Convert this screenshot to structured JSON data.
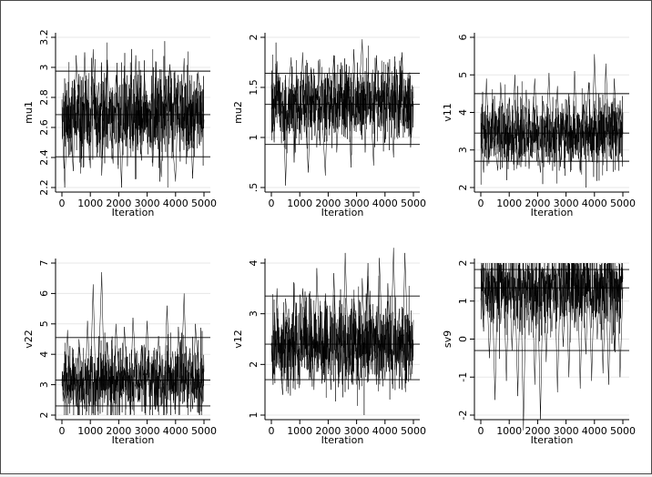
{
  "chart_data": [
    {
      "type": "line",
      "title": "",
      "xlabel": "Iteration",
      "ylabel": "mu1",
      "xlim": [
        0,
        5000
      ],
      "ylim": [
        2.2,
        3.2
      ],
      "x_ticks": [
        0,
        1000,
        2000,
        3000,
        4000,
        5000
      ],
      "y_ticks": [
        2.2,
        2.4,
        2.6,
        2.8,
        3,
        3.2
      ],
      "y_tick_labels": [
        "2.2",
        "2.4",
        "2.6",
        "2.8",
        "3",
        "3.2"
      ],
      "grid": true,
      "series": [
        {
          "x": [
            0,
            100,
            200,
            300,
            400,
            500,
            600,
            700,
            800,
            900,
            1000,
            1100,
            1200,
            1300,
            1400,
            1500,
            1600,
            1700,
            1800,
            1900,
            2000,
            2100,
            2200,
            2300,
            2400,
            2500,
            2600,
            2700,
            2800,
            2900,
            3000,
            3100,
            3200,
            3300,
            3400,
            3500,
            3600,
            3700,
            3800,
            3900,
            4000,
            4100,
            4200,
            4300,
            4400,
            4500,
            4600,
            4700,
            4800,
            4900,
            5000
          ],
          "y": [
            2.68,
            2.2,
            2.75,
            2.58,
            2.31,
            3.08,
            2.71,
            2.5,
            3.1,
            2.62,
            2.33,
            3.12,
            2.55,
            2.9,
            2.28,
            2.74,
            3.05,
            2.61,
            2.36,
            2.95,
            2.7,
            2.2,
            3.01,
            2.58,
            2.85,
            2.44,
            3.08,
            2.69,
            2.38,
            2.96,
            2.63,
            2.78,
            2.34,
            3.04,
            2.55,
            2.27,
            2.88,
            2.71,
            3.02,
            2.47,
            2.24,
            2.92,
            2.6,
            3.06,
            2.4,
            2.83,
            2.26,
            2.75,
            2.97,
            2.52,
            2.69
          ]
        }
      ],
      "reference_lines": [
        2.975,
        2.685,
        2.405
      ]
    },
    {
      "type": "line",
      "title": "",
      "xlabel": "Iteration",
      "ylabel": "mu2",
      "xlim": [
        0,
        5000
      ],
      "ylim": [
        0.5,
        2
      ],
      "x_ticks": [
        0,
        1000,
        2000,
        3000,
        4000,
        5000
      ],
      "y_ticks": [
        0.5,
        1,
        1.5,
        2
      ],
      "y_tick_labels": [
        ".5",
        "1",
        "1.5",
        "2"
      ],
      "grid": true,
      "series": [
        {
          "x": [
            0,
            100,
            200,
            300,
            400,
            500,
            600,
            700,
            800,
            900,
            1000,
            1100,
            1200,
            1300,
            1400,
            1500,
            1600,
            1700,
            1800,
            1900,
            2000,
            2100,
            2200,
            2300,
            2400,
            2500,
            2600,
            2700,
            2800,
            2900,
            3000,
            3100,
            3200,
            3300,
            3400,
            3500,
            3600,
            3700,
            3800,
            3900,
            4000,
            4100,
            4200,
            4300,
            4400,
            4500,
            4600,
            4700,
            4800,
            4900,
            5000
          ],
          "y": [
            1.3,
            0.95,
            1.76,
            1.1,
            1.55,
            0.52,
            1.45,
            1.8,
            0.75,
            1.62,
            1.05,
            1.85,
            1.2,
            0.65,
            1.7,
            1.35,
            0.9,
            1.78,
            1.15,
            0.62,
            1.58,
            1.28,
            1.82,
            0.85,
            1.4,
            1.72,
            1.0,
            1.6,
            0.7,
            1.88,
            1.2,
            1.5,
            1.98,
            0.85,
            1.65,
            1.3,
            0.72,
            1.82,
            1.1,
            1.55,
            0.95,
            1.75,
            1.35,
            0.8,
            1.68,
            1.25,
            1.85,
            1.05,
            1.6,
            0.9,
            1.33
          ]
        }
      ],
      "reference_lines": [
        1.64,
        1.33,
        0.93
      ]
    },
    {
      "type": "line",
      "title": "",
      "xlabel": "Iteration",
      "ylabel": "v11",
      "xlim": [
        0,
        5000
      ],
      "ylim": [
        2,
        6
      ],
      "x_ticks": [
        0,
        1000,
        2000,
        3000,
        4000,
        5000
      ],
      "y_ticks": [
        2,
        3,
        4,
        5,
        6
      ],
      "y_tick_labels": [
        "2",
        "3",
        "4",
        "5",
        "6"
      ],
      "grid": true,
      "series": [
        {
          "x": [
            0,
            100,
            200,
            300,
            400,
            500,
            600,
            700,
            800,
            900,
            1000,
            1100,
            1200,
            1300,
            1400,
            1500,
            1600,
            1700,
            1800,
            1900,
            2000,
            2100,
            2200,
            2300,
            2400,
            2500,
            2600,
            2700,
            2800,
            2900,
            3000,
            3100,
            3200,
            3300,
            3400,
            3500,
            3600,
            3700,
            3800,
            3900,
            4000,
            4100,
            4200,
            4300,
            4400,
            4500,
            4600,
            4700,
            4800,
            4900,
            5000
          ],
          "y": [
            3.4,
            2.4,
            4.9,
            2.8,
            4.2,
            3.1,
            2.45,
            4.8,
            3.5,
            2.7,
            4.4,
            3.0,
            5.0,
            2.6,
            3.9,
            3.3,
            4.6,
            2.5,
            3.7,
            4.9,
            3.2,
            2.4,
            4.3,
            3.6,
            5.05,
            2.8,
            3.4,
            4.7,
            2.55,
            3.9,
            3.1,
            4.5,
            2.7,
            5.1,
            3.3,
            2.4,
            4.2,
            3.6,
            4.8,
            2.9,
            5.55,
            3.2,
            4.4,
            2.6,
            5.3,
            3.5,
            2.75,
            4.9,
            3.1,
            4.2,
            3.45
          ]
        }
      ],
      "reference_lines": [
        4.5,
        3.45,
        2.7
      ]
    },
    {
      "type": "line",
      "title": "",
      "xlabel": "Iteration",
      "ylabel": "v22",
      "xlim": [
        0,
        5000
      ],
      "ylim": [
        2,
        7
      ],
      "x_ticks": [
        0,
        1000,
        2000,
        3000,
        4000,
        5000
      ],
      "y_ticks": [
        2,
        3,
        4,
        5,
        6,
        7
      ],
      "y_tick_labels": [
        "2",
        "3",
        "4",
        "5",
        "6",
        "7"
      ],
      "grid": true,
      "series": [
        {
          "x": [
            0,
            100,
            200,
            300,
            400,
            500,
            600,
            700,
            800,
            900,
            1000,
            1100,
            1200,
            1300,
            1400,
            1500,
            1600,
            1700,
            1800,
            1900,
            2000,
            2100,
            2200,
            2300,
            2400,
            2500,
            2600,
            2700,
            2800,
            2900,
            3000,
            3100,
            3200,
            3300,
            3400,
            3500,
            3600,
            3700,
            3800,
            3900,
            4000,
            4100,
            4200,
            4300,
            4400,
            4500,
            4600,
            4700,
            4800,
            4900,
            5000
          ],
          "y": [
            3.1,
            2.4,
            4.8,
            2.7,
            3.9,
            2.3,
            4.5,
            3.3,
            2.2,
            5.1,
            3.0,
            6.3,
            2.5,
            3.8,
            6.7,
            2.4,
            4.4,
            3.1,
            2.0,
            5.0,
            3.4,
            2.6,
            4.9,
            3.2,
            2.2,
            5.2,
            3.6,
            2.5,
            4.3,
            3.0,
            5.1,
            2.4,
            3.7,
            2.2,
            4.6,
            3.3,
            2.7,
            5.6,
            3.0,
            4.1,
            2.3,
            4.9,
            3.2,
            6.0,
            2.6,
            4.2,
            2.2,
            5.0,
            3.4,
            2.5,
            3.2
          ]
        }
      ],
      "reference_lines": [
        4.55,
        3.15,
        2.3
      ]
    },
    {
      "type": "line",
      "title": "",
      "xlabel": "Iteration",
      "ylabel": "v12",
      "xlim": [
        0,
        5000
      ],
      "ylim": [
        1,
        4
      ],
      "x_ticks": [
        0,
        1000,
        2000,
        3000,
        4000,
        5000
      ],
      "y_ticks": [
        1,
        2,
        3,
        4
      ],
      "y_tick_labels": [
        "1",
        "2",
        "3",
        "4"
      ],
      "grid": true,
      "series": [
        {
          "x": [
            0,
            100,
            200,
            300,
            400,
            500,
            600,
            700,
            800,
            900,
            1000,
            1100,
            1200,
            1300,
            1400,
            1500,
            1600,
            1700,
            1800,
            1900,
            2000,
            2100,
            2200,
            2300,
            2400,
            2500,
            2600,
            2700,
            2800,
            2900,
            3000,
            3100,
            3200,
            3300,
            3400,
            3500,
            3600,
            3700,
            3800,
            3900,
            4000,
            4100,
            4200,
            4300,
            4400,
            4500,
            4600,
            4700,
            4800,
            4900,
            5000
          ],
          "y": [
            2.4,
            1.8,
            3.5,
            2.0,
            1.4,
            3.3,
            2.6,
            1.7,
            3.6,
            2.2,
            1.6,
            3.5,
            2.8,
            1.9,
            3.2,
            1.5,
            3.9,
            2.3,
            1.7,
            3.4,
            2.5,
            1.5,
            3.8,
            2.1,
            3.0,
            1.6,
            4.2,
            2.4,
            1.8,
            3.3,
            2.7,
            1.5,
            3.7,
            2.2,
            4.0,
            1.9,
            2.9,
            1.6,
            4.1,
            2.5,
            1.7,
            3.6,
            2.2,
            4.3,
            1.8,
            3.1,
            1.5,
            4.2,
            2.4,
            1.7,
            2.4
          ]
        }
      ],
      "reference_lines": [
        3.35,
        2.4,
        1.7
      ]
    },
    {
      "type": "line",
      "title": "",
      "xlabel": "Iteration",
      "ylabel": "sv9",
      "xlim": [
        0,
        5000
      ],
      "ylim": [
        -2,
        2
      ],
      "x_ticks": [
        0,
        1000,
        2000,
        3000,
        4000,
        5000
      ],
      "y_ticks": [
        -2,
        -1,
        0,
        1,
        2
      ],
      "y_tick_labels": [
        "-2",
        "-1",
        "0",
        "1",
        "2"
      ],
      "grid": true,
      "series": [
        {
          "x": [
            0,
            100,
            200,
            300,
            400,
            500,
            600,
            700,
            800,
            900,
            1000,
            1100,
            1200,
            1300,
            1400,
            1500,
            1600,
            1700,
            1800,
            1900,
            2000,
            2100,
            2200,
            2300,
            2400,
            2500,
            2600,
            2700,
            2800,
            2900,
            3000,
            3100,
            3200,
            3300,
            3400,
            3500,
            3600,
            3700,
            3800,
            3900,
            4000,
            4100,
            4200,
            4300,
            4400,
            4500,
            4600,
            4700,
            4800,
            4900,
            5000
          ],
          "y": [
            1.85,
            0.2,
            1.8,
            -0.5,
            1.5,
            -1.6,
            1.85,
            0.4,
            1.7,
            -1.1,
            1.85,
            -0.3,
            1.6,
            -1.5,
            1.85,
            -2.4,
            1.7,
            0.1,
            1.85,
            -1.2,
            1.5,
            -2.1,
            1.85,
            -0.6,
            1.7,
            0.2,
            1.85,
            -1.4,
            1.6,
            -0.2,
            1.85,
            -1.0,
            1.75,
            0.3,
            1.85,
            -1.3,
            1.6,
            -0.4,
            1.85,
            -1.1,
            1.7,
            0.0,
            1.85,
            -0.9,
            1.6,
            -1.2,
            1.85,
            -0.3,
            1.7,
            -1.0,
            1.35
          ]
        }
      ],
      "reference_lines": [
        1.83,
        1.35,
        -0.3
      ]
    }
  ]
}
